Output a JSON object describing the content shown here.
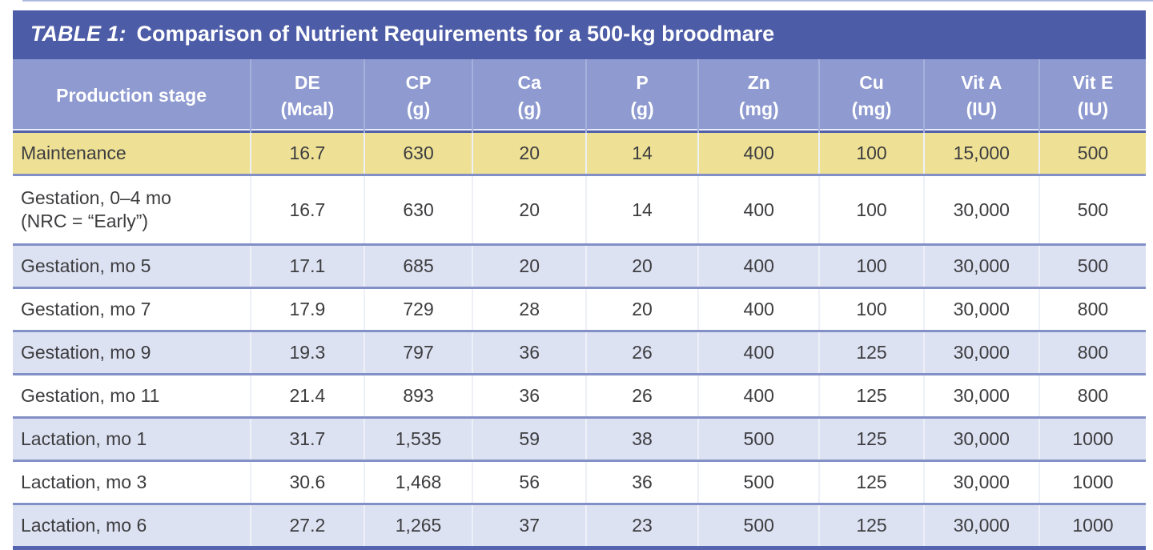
{
  "title": {
    "label": "TABLE 1:",
    "text": "Comparison of Nutrient Requirements for a 500-kg broodmare"
  },
  "chart_data": {
    "type": "table",
    "title": "TABLE 1: Comparison of Nutrient Requirements for a 500-kg broodmare",
    "columns": [
      {
        "name": "Production stage",
        "unit": ""
      },
      {
        "name": "DE",
        "unit": "(Mcal)"
      },
      {
        "name": "CP",
        "unit": "(g)"
      },
      {
        "name": "Ca",
        "unit": "(g)"
      },
      {
        "name": "P",
        "unit": "(g)"
      },
      {
        "name": "Zn",
        "unit": "(mg)"
      },
      {
        "name": "Cu",
        "unit": "(mg)"
      },
      {
        "name": "Vit A",
        "unit": "(IU)"
      },
      {
        "name": "Vit E",
        "unit": "(IU)"
      }
    ],
    "rows": [
      {
        "stage": "Maintenance",
        "note": "",
        "style": "gold",
        "values": [
          "16.7",
          "630",
          "20",
          "14",
          "400",
          "100",
          "15,000",
          "500"
        ]
      },
      {
        "stage": "Gestation, 0–4 mo",
        "note": "(NRC = “Early”)",
        "style": "white",
        "values": [
          "16.7",
          "630",
          "20",
          "14",
          "400",
          "100",
          "30,000",
          "500"
        ]
      },
      {
        "stage": "Gestation, mo 5",
        "note": "",
        "style": "lavender",
        "values": [
          "17.1",
          "685",
          "20",
          "20",
          "400",
          "100",
          "30,000",
          "500"
        ]
      },
      {
        "stage": "Gestation, mo 7",
        "note": "",
        "style": "white",
        "values": [
          "17.9",
          "729",
          "28",
          "20",
          "400",
          "100",
          "30,000",
          "800"
        ]
      },
      {
        "stage": "Gestation, mo 9",
        "note": "",
        "style": "lavender",
        "values": [
          "19.3",
          "797",
          "36",
          "26",
          "400",
          "125",
          "30,000",
          "800"
        ]
      },
      {
        "stage": "Gestation, mo 11",
        "note": "",
        "style": "white",
        "values": [
          "21.4",
          "893",
          "36",
          "26",
          "400",
          "125",
          "30,000",
          "800"
        ]
      },
      {
        "stage": "Lactation, mo 1",
        "note": "",
        "style": "lavender",
        "values": [
          "31.7",
          "1,535",
          "59",
          "38",
          "500",
          "125",
          "30,000",
          "1000"
        ]
      },
      {
        "stage": "Lactation, mo 3",
        "note": "",
        "style": "white",
        "values": [
          "30.6",
          "1,468",
          "56",
          "36",
          "500",
          "125",
          "30,000",
          "1000"
        ]
      },
      {
        "stage": "Lactation, mo 6",
        "note": "",
        "style": "lavender",
        "values": [
          "27.2",
          "1,265",
          "37",
          "23",
          "500",
          "125",
          "30,000",
          "1000"
        ]
      }
    ]
  },
  "colors": {
    "title-bg": "#4d5ca7",
    "header-bg": "#8e9ad0",
    "header-text": "#ffffff",
    "header-rule": "#5061a9",
    "row-rule": "#8290c7",
    "gold-row": "#eee195",
    "lavender-row": "#dde2f2",
    "bottom-border": "#5464ae",
    "text": "#3d3d40"
  }
}
